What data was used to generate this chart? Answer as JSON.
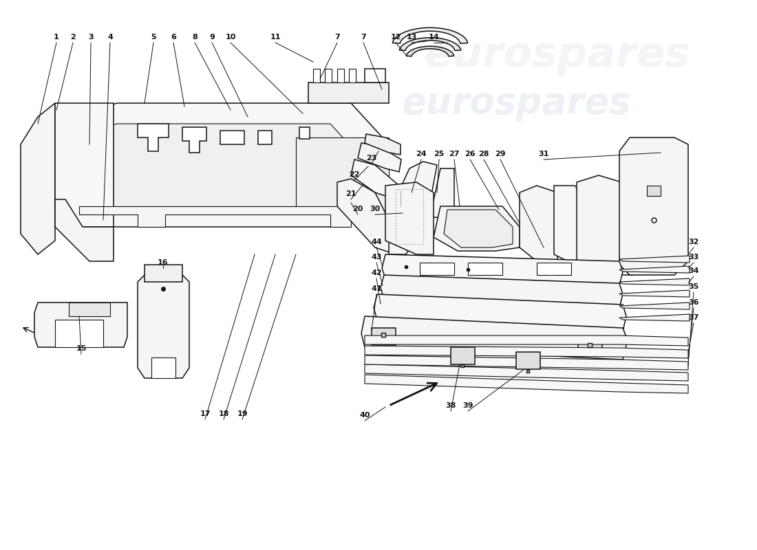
{
  "bg": "#ffffff",
  "lc": "#111111",
  "wm_color": "#c5d0e0",
  "wm_text": "eurospares"
}
